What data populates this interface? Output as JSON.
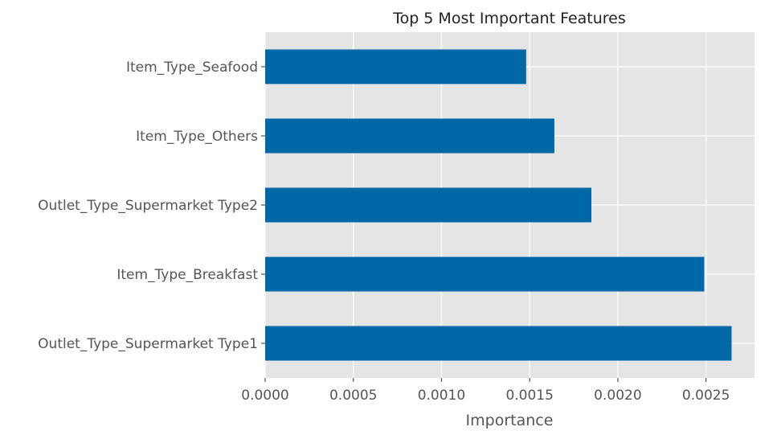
{
  "chart_data": {
    "type": "bar",
    "orientation": "horizontal",
    "title": "Top 5 Most Important Features",
    "xlabel": "Importance",
    "ylabel": "",
    "categories": [
      "Outlet_Type_Supermarket Type1",
      "Item_Type_Breakfast",
      "Outlet_Type_Supermarket Type2",
      "Item_Type_Others",
      "Item_Type_Seafood"
    ],
    "values": [
      0.002645,
      0.00249,
      0.00185,
      0.00164,
      0.00148
    ],
    "xlim": [
      0,
      0.002775
    ],
    "xticks": [
      0,
      0.0005,
      0.001,
      0.0015,
      0.002,
      0.0025
    ],
    "xtick_labels": [
      "0.0000",
      "0.0005",
      "0.0010",
      "0.0015",
      "0.0020",
      "0.0025"
    ],
    "grid": true,
    "legend": "none",
    "colors": {
      "bar": "#0068A6",
      "plot_background": "#E5E5E5",
      "grid": "#FFFFFF",
      "text": "#555555",
      "title": "#222222"
    }
  }
}
